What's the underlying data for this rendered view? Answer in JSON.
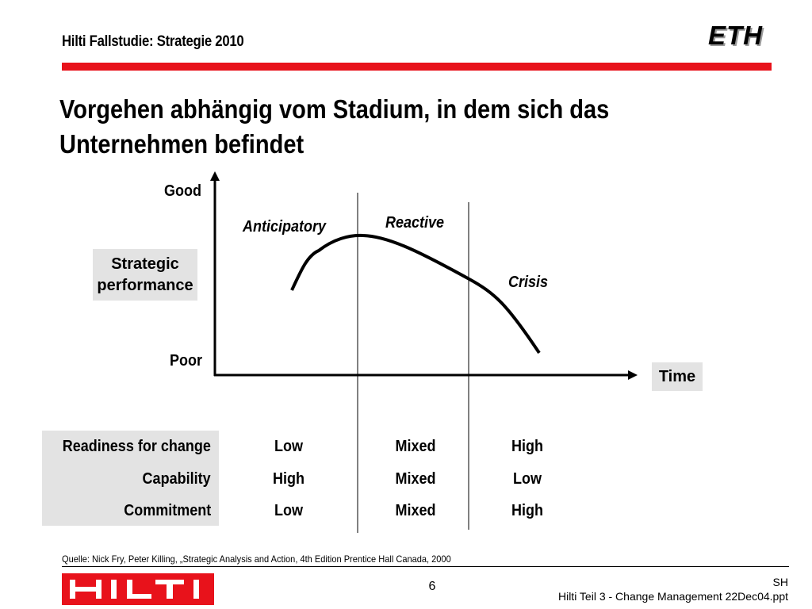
{
  "header": {
    "title": "Hilti Fallstudie: Strategie 2010",
    "logo_text": "ETH",
    "accent_color": "#e8121b"
  },
  "slide": {
    "title_line1": "Vorgehen abhängig vom Stadium, in dem sich das",
    "title_line2": "Unternehmen befindet"
  },
  "diagram": {
    "y_top_label": "Good",
    "y_bottom_label": "Poor",
    "y_axis_title": "Strategic performance",
    "x_axis_title": "Time",
    "phases": [
      "Anticipatory",
      "Reactive",
      "Crisis"
    ]
  },
  "table": {
    "rows": [
      {
        "label": "Readiness for change",
        "values": [
          "Low",
          "Mixed",
          "High"
        ]
      },
      {
        "label": "Capability",
        "values": [
          "High",
          "Mixed",
          "Low"
        ]
      },
      {
        "label": "Commitment",
        "values": [
          "Low",
          "Mixed",
          "High"
        ]
      }
    ]
  },
  "footer": {
    "source": "Quelle: Nick Fry, Peter Killing, „Strategic Analysis and Action, 4th Edition Prentice Hall Canada, 2000",
    "page_number": "6",
    "author": "SH",
    "file": "Hilti Teil 3 - Change Management 22Dec04.ppt",
    "logo_text": "HILTI"
  }
}
